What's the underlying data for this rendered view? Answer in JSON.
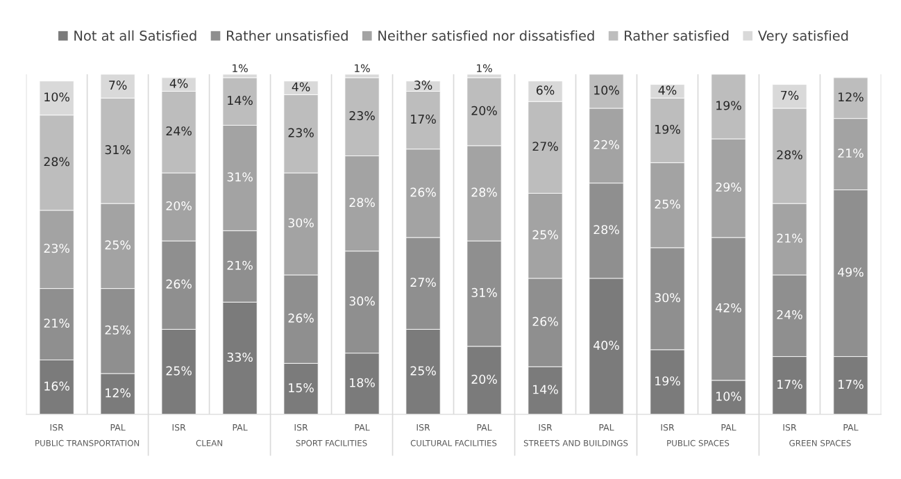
{
  "chart_data": {
    "type": "bar",
    "stacked": true,
    "legend": "top",
    "grid": "x",
    "tick_labels": "x",
    "categories": [
      "ISR",
      "PAL",
      "ISR",
      "PAL",
      "ISR",
      "PAL",
      "ISR",
      "PAL",
      "ISR",
      "PAL",
      "ISR",
      "PAL",
      "ISR",
      "PAL"
    ],
    "annotations": [
      "PUBLIC TRANSPORTATION",
      "CLEAN",
      "SPORT FACILITIES",
      "CULTURAL FACILITIES",
      "STREETS AND BUILDINGS",
      "PUBLIC SPACES",
      "GREEN SPACES"
    ],
    "series": [
      {
        "name": "Not at all Satisfied",
        "color": "#7b7b7b",
        "values": [
          16,
          12,
          25,
          33,
          15,
          18,
          25,
          20,
          14,
          40,
          19,
          10,
          17,
          17
        ],
        "value_labels": [
          "16%",
          "12%",
          "25%",
          "33%",
          "15%",
          "18%",
          "25%",
          "20%",
          "14%",
          "40%",
          "19%",
          "10%",
          "17%",
          "17%"
        ]
      },
      {
        "name": "Rather unsatisfied",
        "color": "#8f8f8f",
        "values": [
          21,
          25,
          26,
          21,
          26,
          30,
          27,
          31,
          26,
          28,
          30,
          42,
          24,
          49
        ],
        "value_labels": [
          "21%",
          "25%",
          "26%",
          "21%",
          "26%",
          "30%",
          "27%",
          "31%",
          "26%",
          "28%",
          "30%",
          "42%",
          "24%",
          "49%"
        ]
      },
      {
        "name": "Neither satisfied nor dissatisfied",
        "color": "#a3a3a3",
        "values": [
          23,
          25,
          20,
          31,
          30,
          28,
          26,
          28,
          25,
          22,
          25,
          29,
          21,
          21
        ],
        "value_labels": [
          "23%",
          "25%",
          "20%",
          "31%",
          "30%",
          "28%",
          "26%",
          "28%",
          "25%",
          "22%",
          "25%",
          "29%",
          "21%",
          "21%"
        ]
      },
      {
        "name": "Rather satisfied",
        "color": "#bdbdbd",
        "values": [
          28,
          31,
          24,
          14,
          23,
          23,
          17,
          20,
          27,
          10,
          19,
          19,
          28,
          12
        ],
        "value_labels": [
          "28%",
          "31%",
          "24%",
          "14%",
          "23%",
          "23%",
          "17%",
          "20%",
          "27%",
          "10%",
          "19%",
          "19%",
          "28%",
          "12%"
        ]
      },
      {
        "name": "Very satisfied",
        "color": "#d9d9d9",
        "values": [
          10,
          7,
          4,
          1,
          4,
          1,
          3,
          1,
          6,
          null,
          4,
          null,
          7,
          null
        ],
        "value_labels": [
          "10%",
          "7%",
          "4%",
          "1%",
          "4%",
          "1%",
          "3%",
          "1%",
          "6%",
          null,
          "4%",
          null,
          "7%",
          null
        ]
      }
    ]
  }
}
